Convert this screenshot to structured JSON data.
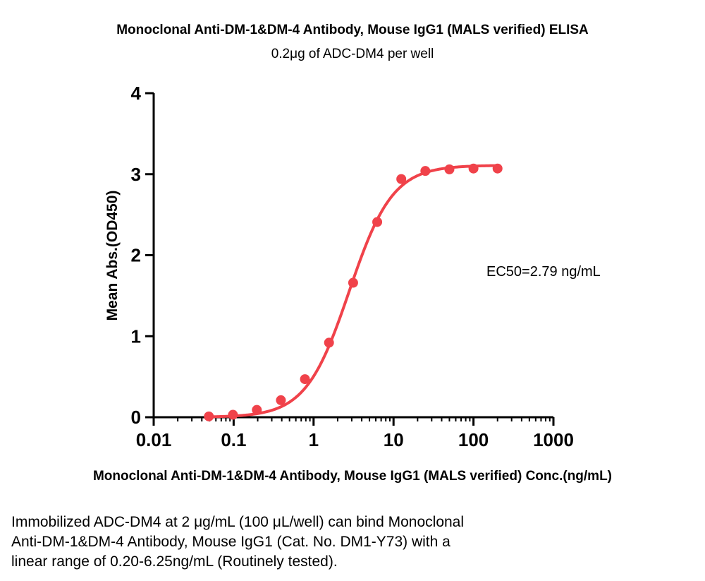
{
  "chart_data": {
    "type": "scatter",
    "title": "Monoclonal Anti-DM-1&DM-4 Antibody, Mouse IgG1 (MALS verified) ELISA",
    "subtitle": "0.2μg of ADC-DM4 per well",
    "xlabel": "Monoclonal Anti-DM-1&DM-4 Antibody, Mouse IgG1 (MALS verified) Conc.(ng/mL)",
    "ylabel": "Mean Abs.(OD450)",
    "xscale": "log",
    "xlim": [
      0.01,
      1000
    ],
    "ylim": [
      0,
      4
    ],
    "xticks": [
      "0.01",
      "0.1",
      "1",
      "10",
      "100",
      "1000"
    ],
    "yticks": [
      "0",
      "1",
      "2",
      "3",
      "4"
    ],
    "grid": false,
    "color": "#f0424a",
    "annotation": "EC50=2.79 ng/mL",
    "points": {
      "x": [
        0.049,
        0.098,
        0.195,
        0.39,
        0.78,
        1.56,
        3.125,
        6.25,
        12.5,
        25,
        50,
        100,
        200
      ],
      "y": [
        0.01,
        0.03,
        0.09,
        0.21,
        0.47,
        0.92,
        1.66,
        2.41,
        2.94,
        3.04,
        3.06,
        3.07,
        3.07
      ]
    },
    "fit": {
      "model": "4PL",
      "bottom": 0.0,
      "top": 3.11,
      "ec50": 2.79,
      "hill": 1.6,
      "x_range": [
        0.049,
        200
      ]
    }
  },
  "caption": {
    "line1": "Immobilized ADC-DM4 at 2 μg/mL (100 μL/well) can bind Monoclonal",
    "line2": "Anti-DM-1&DM-4 Antibody, Mouse IgG1 (Cat. No. DM1-Y73) with a",
    "line3": "linear range of 0.20-6.25ng/mL (Routinely tested)."
  }
}
